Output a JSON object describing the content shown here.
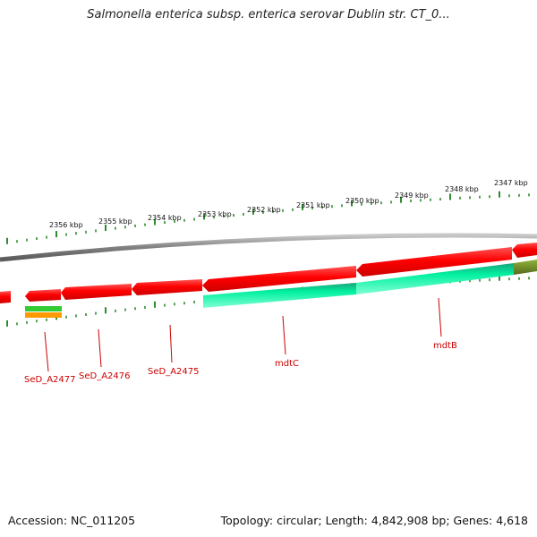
{
  "title": "Salmonella enterica subsp. enterica serovar Dublin str. CT_0...",
  "footer": {
    "accession": "Accession: NC_011205",
    "summary": "Topology: circular; Length: 4,842,908 bp; Genes: 4,618"
  },
  "scale_labels": [
    "2356 kbp",
    "2355 kbp",
    "2354 kbp",
    "2353 kbp",
    "2352 kbp",
    "2351 kbp",
    "2350 kbp",
    "2349 kbp",
    "2348 kbp",
    "2347 kbp"
  ],
  "gene_labels": [
    "SeD_A2477",
    "SeD_A2476",
    "SeD_A2475",
    "mdtC",
    "mdtB"
  ],
  "colors": {
    "forward_genes": "#ff0000",
    "reverse_genes": "#00e69a",
    "backbone": "#8a8a8a",
    "ticks": "#2e8b2e",
    "label_red": "#cc0000",
    "marker_green": "#33cc33",
    "marker_orange": "#ff9900",
    "olive": "#6b8e23"
  }
}
